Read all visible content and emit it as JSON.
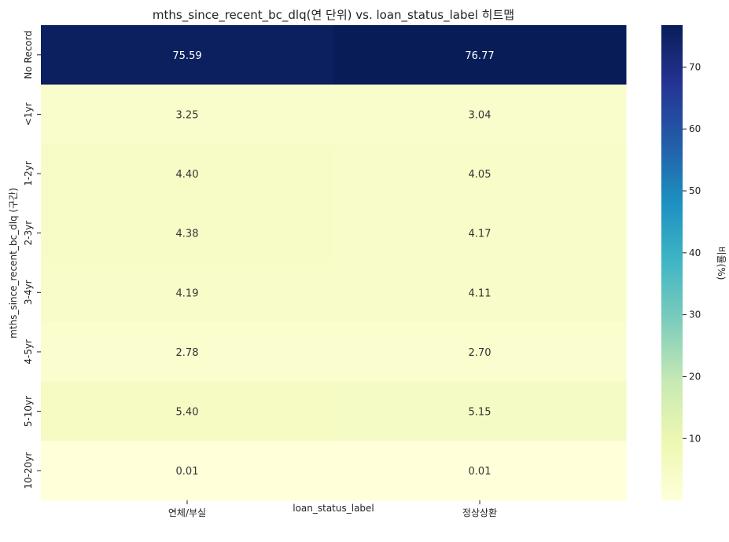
{
  "chart_data": {
    "type": "heatmap",
    "title": "mths_since_recent_bc_dlq(연 단위) vs. loan_status_label 히트맵",
    "xlabel": "loan_status_label",
    "ylabel": "mths_since_recent_bc_dlq (구간)",
    "x_categories": [
      "연체/부실",
      "정상상환"
    ],
    "y_categories": [
      "No Record",
      "<1yr",
      "1-2yr",
      "2-3yr",
      "3-4yr",
      "4-5yr",
      "5-10yr",
      "10-20yr"
    ],
    "values": [
      [
        75.59,
        76.77
      ],
      [
        3.25,
        3.04
      ],
      [
        4.4,
        4.05
      ],
      [
        4.38,
        4.17
      ],
      [
        4.19,
        4.11
      ],
      [
        2.78,
        2.7
      ],
      [
        5.4,
        5.15
      ],
      [
        0.01,
        0.01
      ]
    ],
    "value_labels": [
      [
        "75.59",
        "76.77"
      ],
      [
        "3.25",
        "3.04"
      ],
      [
        "4.40",
        "4.05"
      ],
      [
        "4.38",
        "4.17"
      ],
      [
        "4.19",
        "4.11"
      ],
      [
        "2.78",
        "2.70"
      ],
      [
        "5.40",
        "5.15"
      ],
      [
        "0.01",
        "0.01"
      ]
    ],
    "colorbar": {
      "label": "비율(%)",
      "range": [
        0.01,
        76.77
      ],
      "ticks": [
        10,
        20,
        30,
        40,
        50,
        60,
        70
      ],
      "colormap": "YlGnBu",
      "stops": [
        "#ffffd9",
        "#edf8b1",
        "#c7e9b4",
        "#7fcdbb",
        "#41b6c4",
        "#1d91c0",
        "#225ea8",
        "#253494",
        "#081d58"
      ]
    }
  }
}
